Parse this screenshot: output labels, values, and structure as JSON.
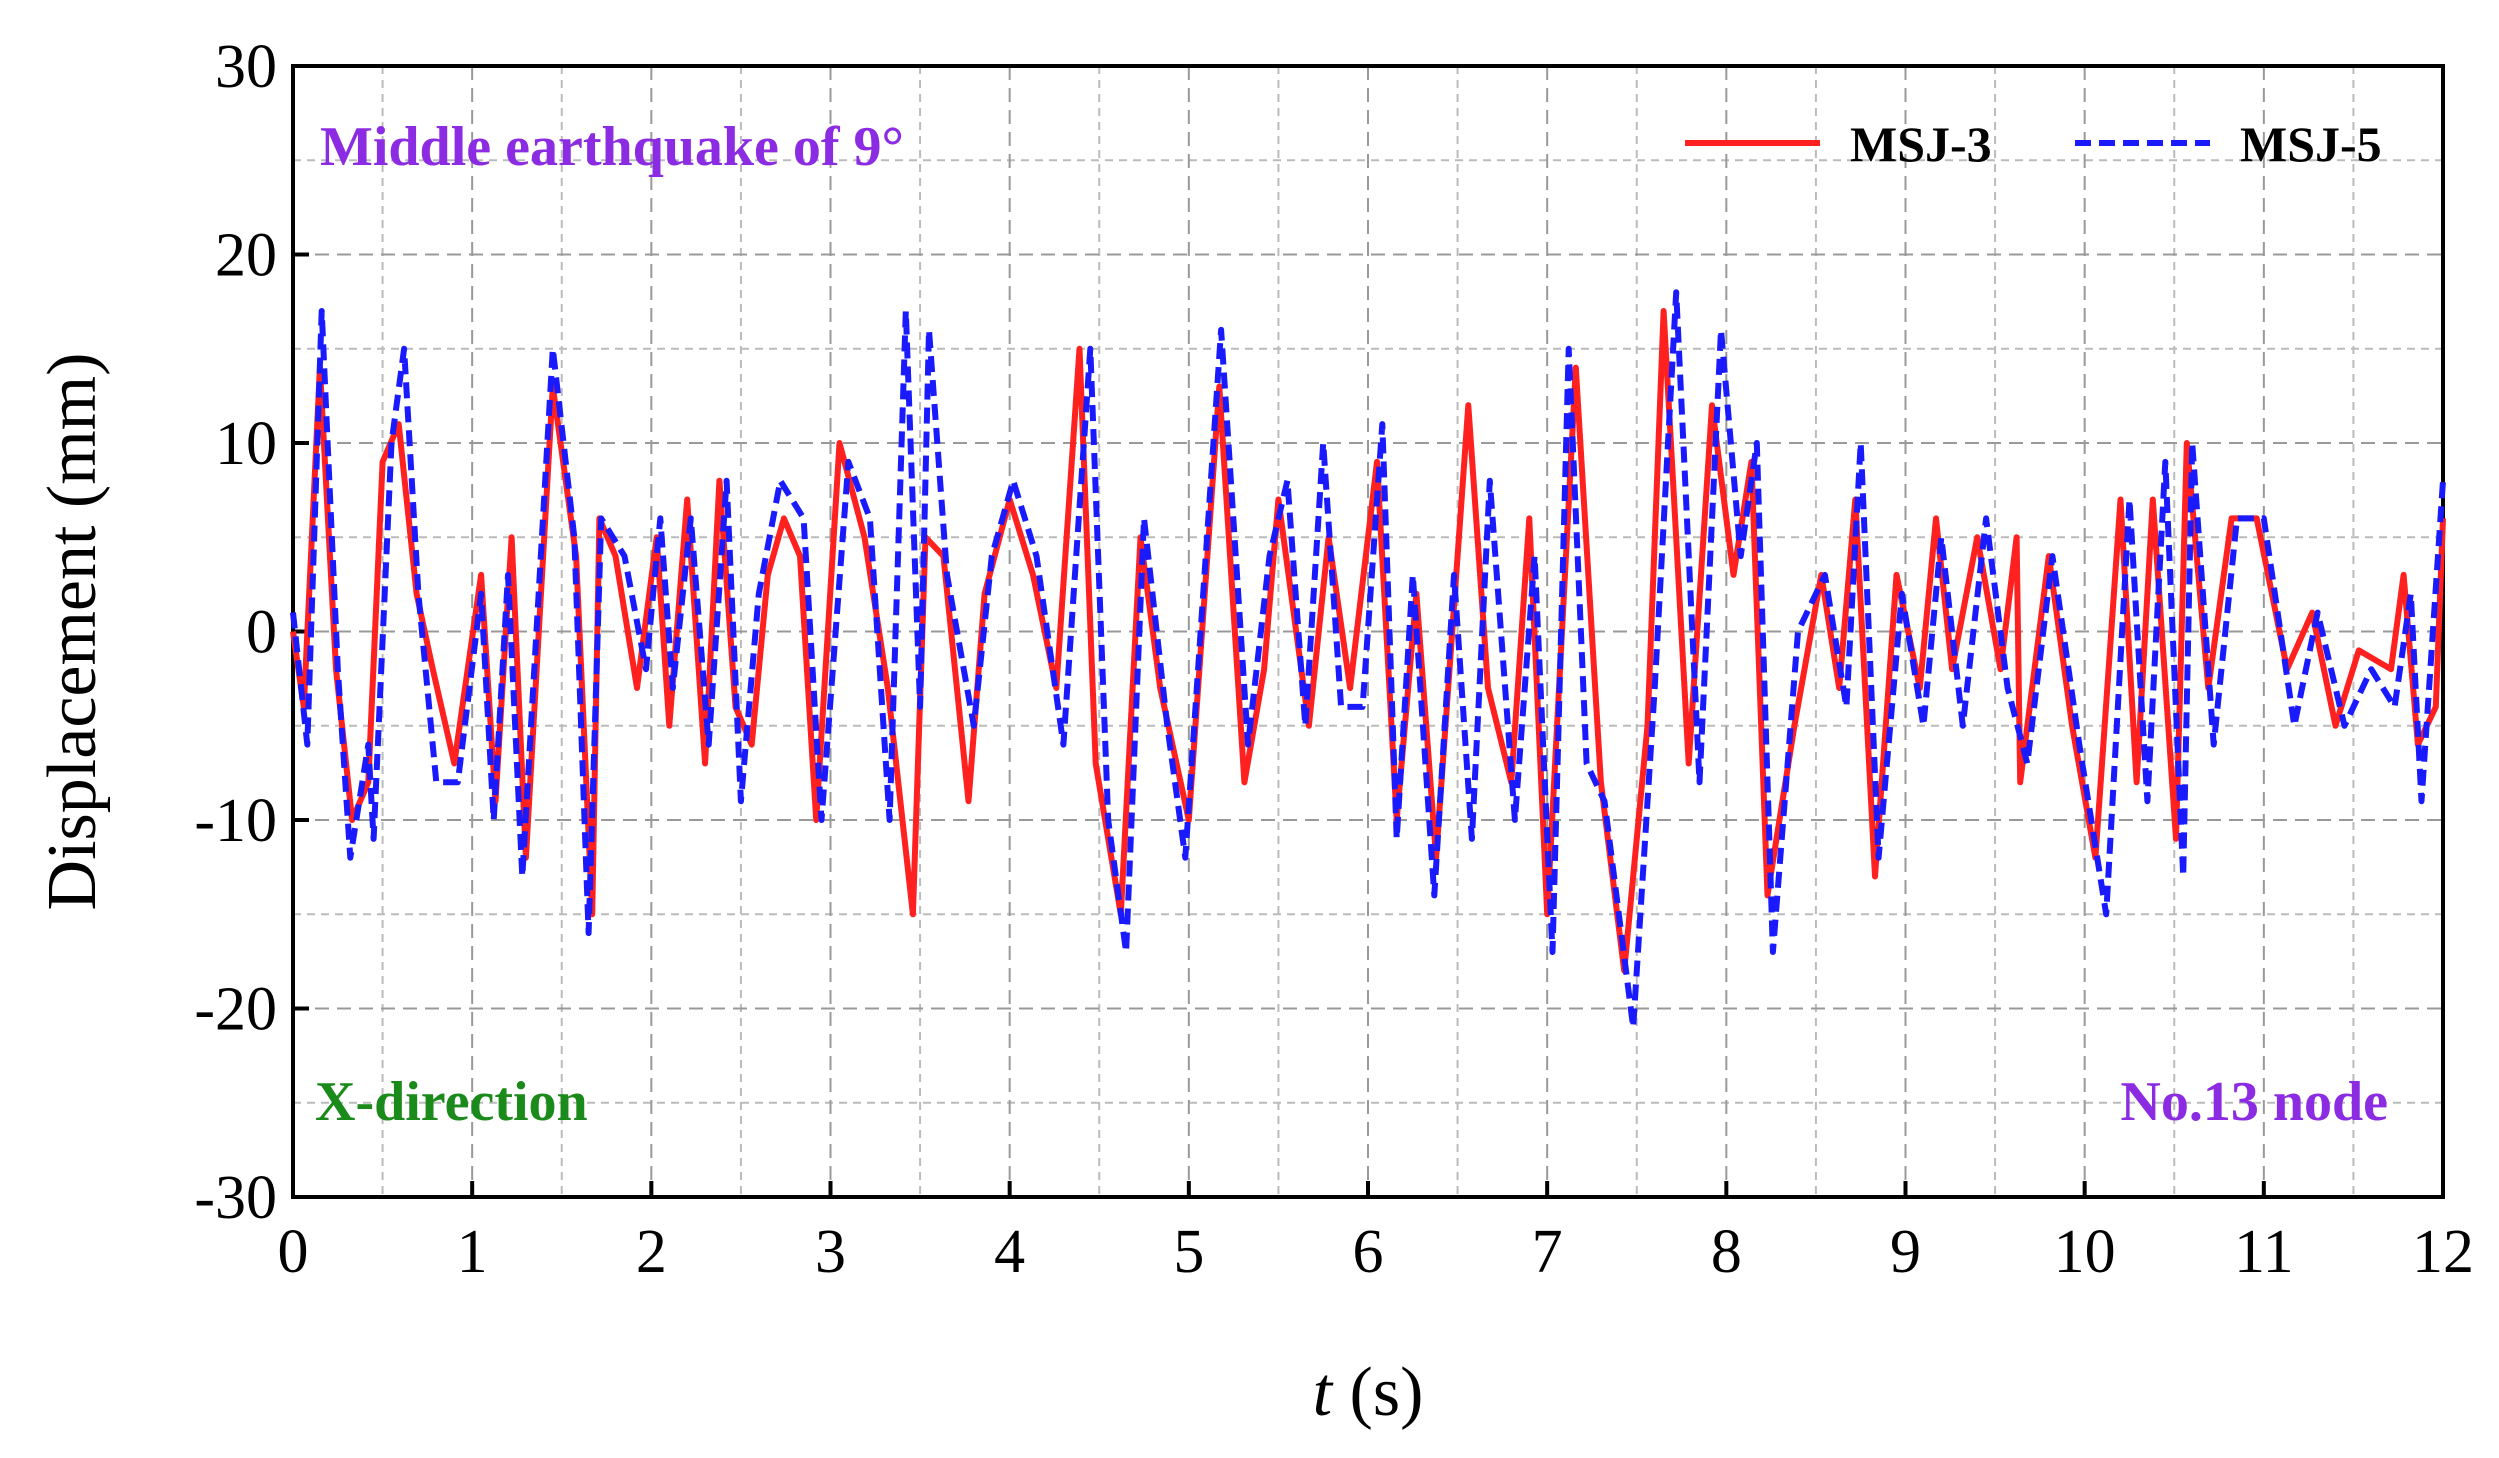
{
  "chart_data": {
    "type": "line",
    "xlabel": "t (s)",
    "ylabel": "Displacement (mm)",
    "annotations": [
      "Middle earthquake of 9°",
      "X-direction",
      "No.13 node"
    ],
    "annotation_colors": [
      "#8b2be2",
      "#1a8a1a",
      "#8b2be2"
    ],
    "xlim": [
      0,
      12
    ],
    "xticks": [
      0,
      1,
      2,
      3,
      4,
      5,
      6,
      7,
      8,
      9,
      10,
      11,
      12
    ],
    "ylim": [
      -30,
      30
    ],
    "yticks": [
      -30,
      -20,
      -10,
      0,
      10,
      20,
      30
    ],
    "xminorticks": [
      0.5,
      1.5,
      2.5,
      3.5,
      4.5,
      5.5,
      6.5,
      7.5,
      8.5,
      9.5,
      10.5,
      11.5
    ],
    "yminorticks": [
      -25,
      -15,
      -5,
      5,
      15,
      25
    ],
    "grid": true,
    "legend": "upper right",
    "series": [
      {
        "name": "MSJ-3",
        "color": "#ff2020",
        "dash": "solid",
        "x": [
          0,
          0.06,
          0.15,
          0.24,
          0.33,
          0.42,
          0.5,
          0.59,
          0.69,
          0.78,
          0.9,
          1.05,
          1.13,
          1.22,
          1.3,
          1.45,
          1.58,
          1.67,
          1.71,
          1.8,
          1.92,
          2.03,
          2.1,
          2.2,
          2.3,
          2.38,
          2.47,
          2.56,
          2.65,
          2.74,
          2.83,
          2.92,
          3.05,
          3.19,
          3.32,
          3.46,
          3.53,
          3.63,
          3.77,
          3.86,
          4.0,
          4.13,
          4.26,
          4.39,
          4.48,
          4.62,
          4.73,
          4.84,
          5.0,
          5.17,
          5.31,
          5.42,
          5.5,
          5.67,
          5.78,
          5.9,
          6.05,
          6.16,
          6.27,
          6.38,
          6.56,
          6.67,
          6.8,
          6.9,
          7.0,
          7.16,
          7.3,
          7.43,
          7.56,
          7.65,
          7.79,
          7.92,
          8.04,
          8.14,
          8.23,
          8.38,
          8.53,
          8.63,
          8.72,
          8.83,
          8.95,
          9.08,
          9.17,
          9.26,
          9.4,
          9.53,
          9.62,
          9.64,
          9.8,
          9.93,
          10.06,
          10.2,
          10.29,
          10.38,
          10.51,
          10.57,
          10.69,
          10.82,
          10.96,
          11.13,
          11.27,
          11.4,
          11.53,
          11.71,
          11.78,
          11.86,
          11.96,
          12
        ],
        "values": [
          0,
          -4,
          14,
          -2,
          -10,
          -8,
          9,
          11,
          2,
          -2,
          -7,
          3,
          -9,
          5,
          -12,
          13,
          4,
          -15,
          6,
          4,
          -3,
          5,
          -5,
          7,
          -7,
          8,
          -4,
          -6,
          3,
          6,
          4,
          -10,
          10,
          5,
          -3,
          -15,
          5,
          4,
          -9,
          2,
          7,
          3,
          -3,
          15,
          -7,
          -15,
          5,
          -3,
          -10,
          13,
          -8,
          -2,
          7,
          -5,
          5,
          -3,
          9,
          -10,
          2,
          -12,
          12,
          -3,
          -8,
          6,
          -15,
          14,
          -8,
          -18,
          -5,
          17,
          -7,
          12,
          3,
          9,
          -14,
          -5,
          3,
          -3,
          7,
          -13,
          3,
          -3,
          6,
          -2,
          5,
          -2,
          5,
          -8,
          4,
          -5,
          -12,
          7,
          -8,
          7,
          -11,
          10,
          -3,
          6,
          6,
          -2,
          1,
          -5,
          -1,
          -2,
          3,
          -6,
          -4,
          6
        ]
      },
      {
        "name": "MSJ-5",
        "color": "#1a1aff",
        "dash": "dashed",
        "x": [
          0,
          0.08,
          0.16,
          0.25,
          0.32,
          0.42,
          0.45,
          0.55,
          0.62,
          0.7,
          0.8,
          0.92,
          1.05,
          1.12,
          1.2,
          1.28,
          1.45,
          1.57,
          1.65,
          1.72,
          1.85,
          1.97,
          2.05,
          2.12,
          2.22,
          2.32,
          2.42,
          2.5,
          2.6,
          2.72,
          2.85,
          2.95,
          3.1,
          3.22,
          3.33,
          3.42,
          3.5,
          3.55,
          3.65,
          3.8,
          3.9,
          4.02,
          4.15,
          4.3,
          4.45,
          4.55,
          4.65,
          4.75,
          4.88,
          4.98,
          5.18,
          5.33,
          5.45,
          5.55,
          5.65,
          5.75,
          5.85,
          5.97,
          6.08,
          6.16,
          6.25,
          6.37,
          6.48,
          6.58,
          6.68,
          6.82,
          6.93,
          7.03,
          7.12,
          7.22,
          7.32,
          7.48,
          7.6,
          7.72,
          7.85,
          7.97,
          8.08,
          8.17,
          8.26,
          8.4,
          8.55,
          8.67,
          8.75,
          8.85,
          8.98,
          9.1,
          9.2,
          9.32,
          9.45,
          9.57,
          9.68,
          9.82,
          9.97,
          10.12,
          10.25,
          10.35,
          10.45,
          10.55,
          10.6,
          10.72,
          10.85,
          11.0,
          11.17,
          11.3,
          11.45,
          11.6,
          11.73,
          11.82,
          11.88,
          12
        ],
        "values": [
          1,
          -6,
          17,
          -2,
          -12,
          -6,
          -11,
          10,
          15,
          2,
          -8,
          -8,
          2,
          -10,
          3,
          -13,
          15,
          5,
          -16,
          6,
          4,
          -2,
          6,
          -3,
          6,
          -6,
          8,
          -9,
          2,
          8,
          6,
          -10,
          9,
          6,
          -10,
          17,
          -4,
          16,
          3,
          -5,
          4,
          8,
          4,
          -6,
          15,
          -10,
          -17,
          6,
          -5,
          -12,
          16,
          -6,
          4,
          8,
          -5,
          10,
          -4,
          -4,
          11,
          -11,
          3,
          -14,
          3,
          -11,
          8,
          -10,
          4,
          -17,
          15,
          -7,
          -9,
          -21,
          -3,
          18,
          -8,
          16,
          4,
          10,
          -17,
          0,
          3,
          -4,
          10,
          -12,
          2,
          -5,
          5,
          -5,
          6,
          -3,
          -7,
          4,
          -6,
          -15,
          7,
          -9,
          9,
          -13,
          10,
          -6,
          6,
          6,
          -5,
          1,
          -5,
          -2,
          -4,
          2,
          -9,
          8
        ]
      }
    ]
  }
}
